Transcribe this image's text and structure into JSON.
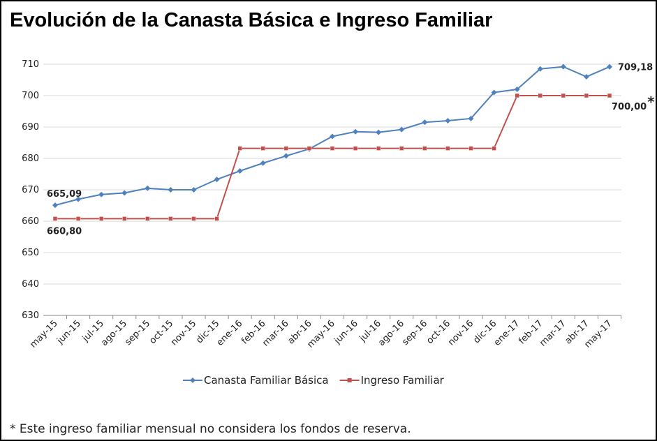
{
  "chart_data": {
    "type": "line",
    "title": "Evolución de la Canasta Básica e Ingreso Familiar",
    "categories": [
      "may-15",
      "jun-15",
      "jul-15",
      "ago-15",
      "sep-15",
      "oct-15",
      "nov-15",
      "dic-15",
      "ene-16",
      "feb-16",
      "mar-16",
      "abr-16",
      "may-16",
      "jun-16",
      "jul-16",
      "ago-16",
      "sep-16",
      "oct-16",
      "nov-16",
      "dic-16",
      "ene-17",
      "feb-17",
      "mar-17",
      "abr-17",
      "may-17"
    ],
    "series": [
      {
        "name": "Canasta Familiar Básica",
        "color": "#4f81bd",
        "marker": "diamond",
        "values": [
          665.09,
          667,
          668.5,
          669,
          670.5,
          670,
          670,
          673.3,
          676,
          678.5,
          680.8,
          683,
          687,
          688.5,
          688.3,
          689.2,
          691.5,
          692,
          692.7,
          701,
          702,
          708.5,
          709.2,
          706,
          709.18
        ],
        "value_labels": [
          "665,09",
          null,
          null,
          null,
          null,
          null,
          null,
          null,
          null,
          null,
          null,
          null,
          null,
          null,
          null,
          null,
          null,
          null,
          null,
          null,
          null,
          null,
          null,
          null,
          "709,18"
        ]
      },
      {
        "name": "Ingreso Familiar",
        "color": "#c0504d",
        "marker": "square",
        "values": [
          660.8,
          660.8,
          660.8,
          660.8,
          660.8,
          660.8,
          660.8,
          660.8,
          683.2,
          683.2,
          683.2,
          683.2,
          683.2,
          683.2,
          683.2,
          683.2,
          683.2,
          683.2,
          683.2,
          683.2,
          700,
          700,
          700,
          700,
          700
        ],
        "value_labels": [
          "660,80",
          null,
          null,
          null,
          null,
          null,
          null,
          null,
          null,
          null,
          null,
          null,
          null,
          null,
          null,
          null,
          null,
          null,
          null,
          null,
          null,
          null,
          null,
          null,
          "700,00"
        ]
      }
    ],
    "footnote_marker": "*",
    "ylim": [
      630,
      710
    ],
    "yticks": [
      630,
      640,
      650,
      660,
      670,
      680,
      690,
      700,
      710
    ],
    "grid": true,
    "legend": "bottom",
    "footnote": "* Este ingreso familiar mensual no considera los fondos de reserva."
  }
}
